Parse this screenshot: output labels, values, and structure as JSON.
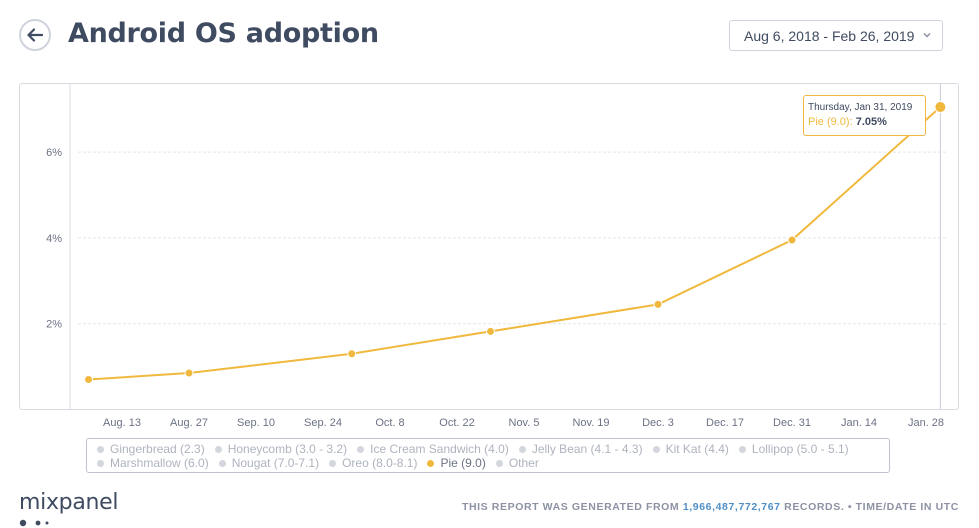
{
  "header": {
    "title": "Android OS adoption",
    "date_range": "Aug 6, 2018 - Feb 26, 2019"
  },
  "chart_data": {
    "type": "line",
    "x": [
      "Aug. 6",
      "Aug. 27",
      "Sep. 30",
      "Oct. 29",
      "Dec. 3",
      "Dec. 31",
      "Jan. 31"
    ],
    "series": [
      {
        "name": "Pie (9.0)",
        "values": [
          0.7,
          0.85,
          1.3,
          1.82,
          2.45,
          3.95,
          7.05
        ],
        "color": "#f0b93e"
      }
    ],
    "x_tick_labels": [
      "Aug. 13",
      "Aug. 27",
      "Sep. 10",
      "Sep. 24",
      "Oct. 8",
      "Oct. 22",
      "Nov. 5",
      "Nov. 19",
      "Dec. 3",
      "Dec. 17",
      "Dec. 31",
      "Jan. 14",
      "Jan. 28"
    ],
    "y_ticks": [
      {
        "value": 2,
        "label": "2%"
      },
      {
        "value": 4,
        "label": "4%"
      },
      {
        "value": 6,
        "label": "6%"
      }
    ],
    "ylim": [
      0,
      7.4
    ],
    "grid": true,
    "legend_placement": "bottom"
  },
  "tooltip": {
    "date": "Thursday, Jan 31, 2019",
    "series": "Pie (9.0)",
    "value": "7.05%"
  },
  "legend": {
    "items": [
      {
        "label": "Gingerbread (2.3)",
        "active": false
      },
      {
        "label": "Honeycomb (3.0 - 3.2)",
        "active": false
      },
      {
        "label": "Ice Cream Sandwich (4.0)",
        "active": false
      },
      {
        "label": "Jelly Bean (4.1 - 4.3)",
        "active": false
      },
      {
        "label": "Kit Kat (4.4)",
        "active": false
      },
      {
        "label": "Lollipop (5.0 - 5.1)",
        "active": false
      },
      {
        "label": "Marshmallow (6.0)",
        "active": false
      },
      {
        "label": "Nougat (7.0-7.1)",
        "active": false
      },
      {
        "label": "Oreo (8.0-8.1)",
        "active": false
      },
      {
        "label": "Pie (9.0)",
        "active": true
      },
      {
        "label": "Other",
        "active": false
      }
    ]
  },
  "footer": {
    "logo": "mixpanel",
    "prefix": "THIS REPORT WAS GENERATED FROM",
    "records": "1,966,487,772,767",
    "suffix": "RECORDS. • TIME/DATE IN UTC"
  },
  "colors": {
    "accent": "#f0b93e",
    "grid": "#e3e5ea",
    "text": "#3f4b61"
  }
}
